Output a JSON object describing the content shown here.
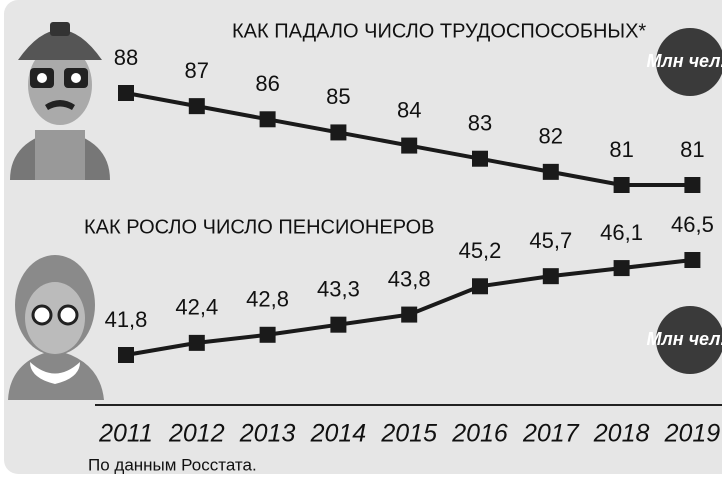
{
  "chart_data": {
    "type": "line",
    "categories": [
      "2011",
      "2012",
      "2013",
      "2014",
      "2015",
      "2016",
      "2017",
      "2018",
      "2019"
    ],
    "series": [
      {
        "name": "КАК ПАДАЛО ЧИСЛО ТРУДОСПОСОБНЫХ*",
        "unit": "Млн чел.",
        "color": "#1a1a1a",
        "values": [
          88,
          87,
          86,
          85,
          84,
          83,
          82,
          81,
          81
        ]
      },
      {
        "name": "КАК РОСЛО ЧИСЛО ПЕНСИОНЕРОВ",
        "unit": "Млн чел.",
        "color": "#1a1a1a",
        "values": [
          41.8,
          42.4,
          42.8,
          43.3,
          43.8,
          45.2,
          45.7,
          46.1,
          46.5
        ],
        "value_labels": [
          "41,8",
          "42,4",
          "42,8",
          "43,3",
          "43,8",
          "45,2",
          "45,7",
          "46,1",
          "46,5"
        ]
      }
    ],
    "source": "По данным Росстата."
  }
}
